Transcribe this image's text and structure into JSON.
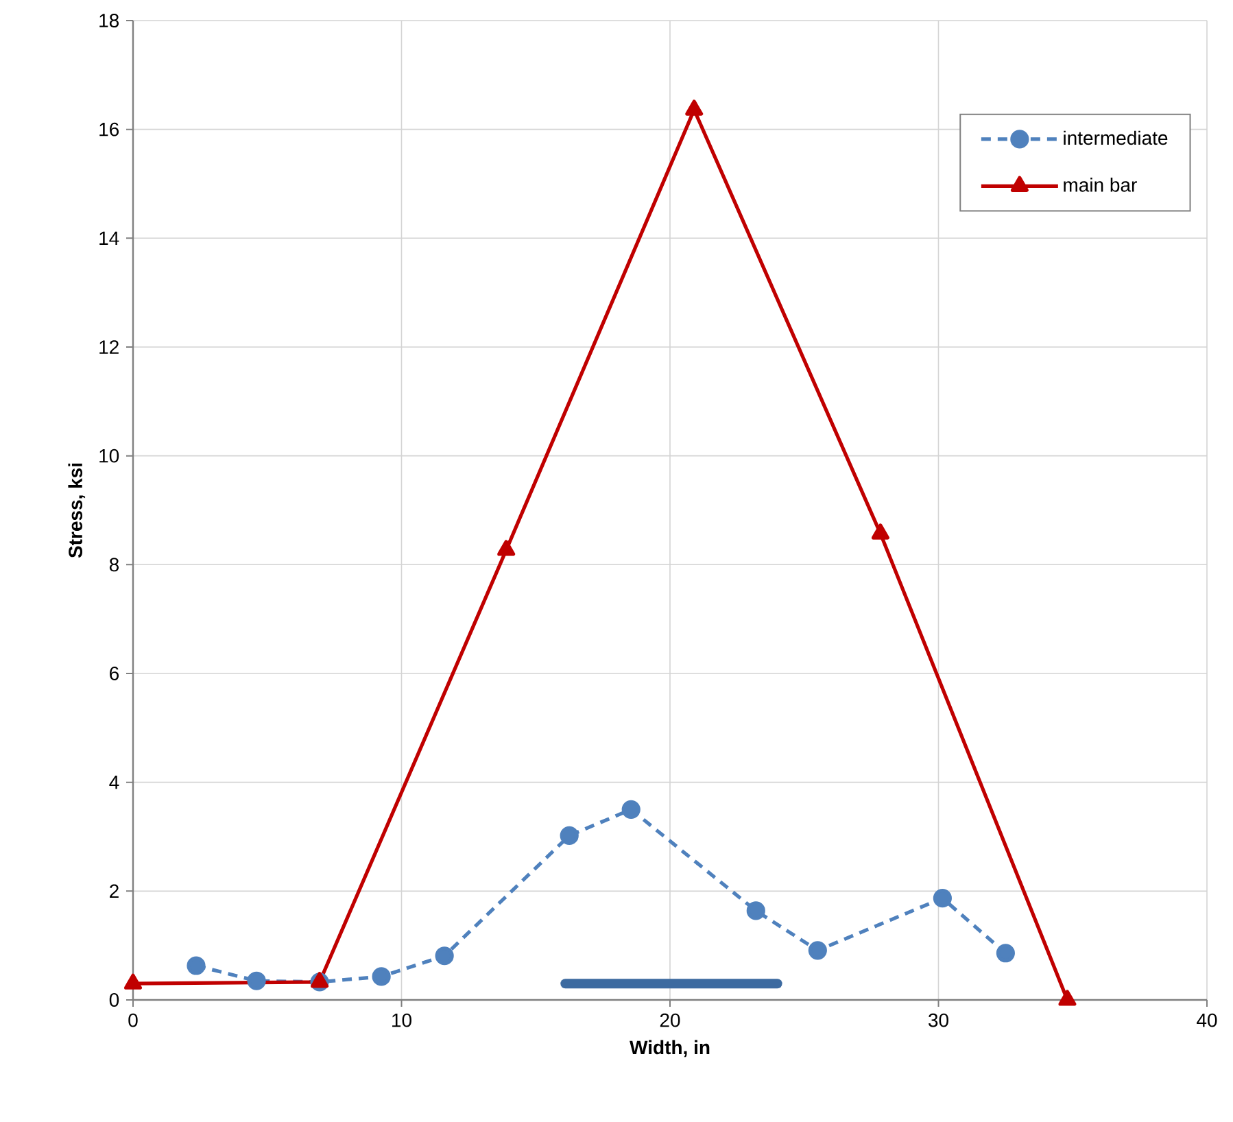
{
  "chart_data": {
    "type": "line",
    "xlabel": "Width, in",
    "ylabel": "Stress, ksi",
    "xlim": [
      0,
      40
    ],
    "ylim": [
      0,
      18
    ],
    "xticks": [
      0,
      10,
      20,
      30,
      40
    ],
    "yticks": [
      0,
      2,
      4,
      6,
      8,
      10,
      12,
      14,
      16,
      18
    ],
    "grid": true,
    "legend": "top right",
    "series": [
      {
        "name": "intermediate",
        "color": "#4f81bd",
        "marker": "circle",
        "line_style": "dashed",
        "x": [
          2.35,
          4.6,
          6.95,
          9.25,
          11.6,
          16.25,
          18.55,
          23.2,
          25.5,
          30.15,
          32.5
        ],
        "values": [
          0.63,
          0.35,
          0.33,
          0.43,
          0.81,
          3.02,
          3.5,
          1.64,
          0.91,
          1.87,
          0.86
        ]
      },
      {
        "name": "main bar",
        "color": "#c00000",
        "marker": "triangle",
        "line_style": "solid",
        "x": [
          0,
          6.95,
          13.9,
          20.9,
          27.84,
          34.8
        ],
        "values": [
          0.3,
          0.33,
          8.27,
          16.36,
          8.57,
          0
        ]
      },
      {
        "color": "#3c6aa0",
        "marker": "none",
        "line_style": "solid",
        "x": [
          16.1,
          24.0
        ],
        "values": [
          0.3,
          0.3
        ]
      }
    ]
  }
}
